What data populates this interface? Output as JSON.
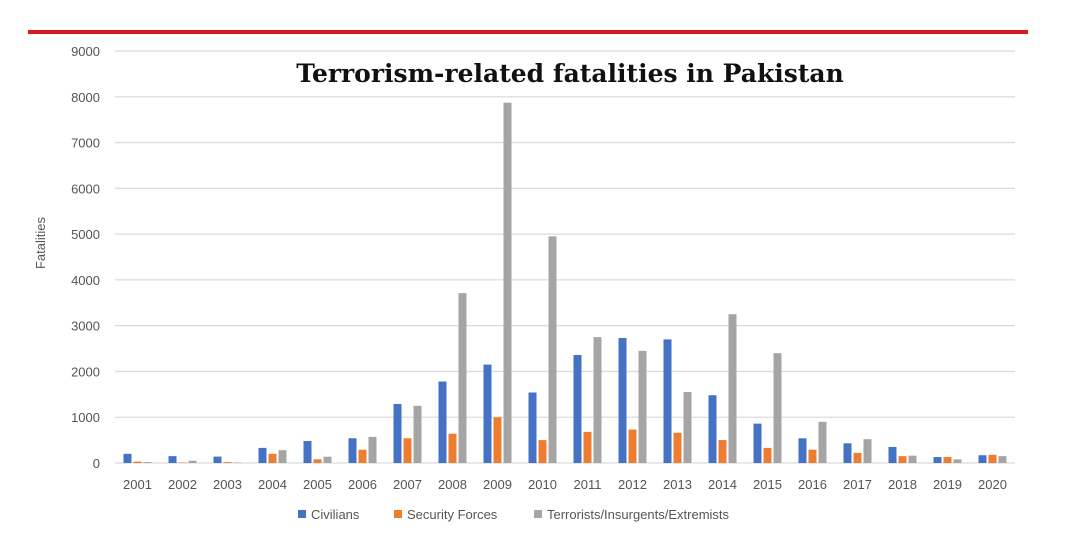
{
  "chart_data": {
    "type": "bar",
    "title": "Terrorism-related fatalities in Pakistan",
    "xlabel": "",
    "ylabel": "Fatalities",
    "ylim": [
      0,
      9000
    ],
    "yticks": [
      "0",
      "1000",
      "2000",
      "3000",
      "4000",
      "5000",
      "6000",
      "7000",
      "8000",
      "9000"
    ],
    "grid": true,
    "legend_position": "bottom",
    "categories": [
      "2001",
      "2002",
      "2003",
      "2004",
      "2005",
      "2006",
      "2007",
      "2008",
      "2009",
      "2010",
      "2011",
      "2012",
      "2013",
      "2014",
      "2015",
      "2016",
      "2017",
      "2018",
      "2019",
      "2020"
    ],
    "series": [
      {
        "name": "Civilians",
        "color": "#4472c4",
        "values": [
          200,
          150,
          140,
          330,
          480,
          540,
          1290,
          1780,
          2150,
          1540,
          2360,
          2730,
          2700,
          1480,
          860,
          540,
          430,
          350,
          130,
          170
        ]
      },
      {
        "name": "Security Forces",
        "color": "#ed7d31",
        "values": [
          30,
          10,
          20,
          200,
          81,
          290,
          540,
          640,
          1000,
          500,
          680,
          730,
          660,
          500,
          330,
          290,
          220,
          150,
          130,
          180
        ]
      },
      {
        "name": "Terrorists/Insurgents/Extremists",
        "color": "#a5a5a5",
        "values": [
          20,
          50,
          10,
          280,
          137,
          570,
          1250,
          3710,
          7870,
          4950,
          2750,
          2450,
          1550,
          3250,
          2400,
          900,
          520,
          160,
          80,
          150
        ]
      }
    ]
  },
  "accent_color": "#d71920"
}
